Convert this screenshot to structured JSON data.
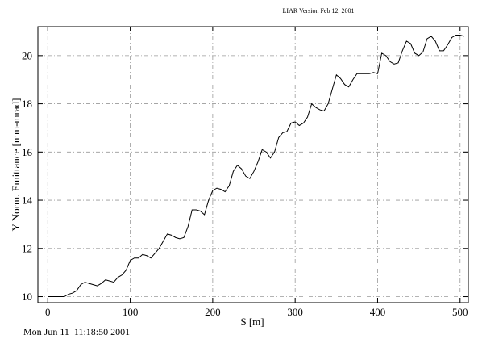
{
  "header": {
    "version_text": "LIAR Version Feb 12, 2001"
  },
  "footer": {
    "timestamp": "Mon Jun 11  11:18:50 2001"
  },
  "chart_data": {
    "type": "line",
    "title": "",
    "xlabel": "S [m]",
    "ylabel": "Y Norm. Emittance [mm-mrad]",
    "xlim": [
      -12,
      510
    ],
    "ylim": [
      9.75,
      21.2
    ],
    "xticks": [
      0,
      100,
      200,
      300,
      400,
      500
    ],
    "xtick_labels": [
      "0",
      "100",
      "200",
      "300",
      "400",
      "500"
    ],
    "yticks": [
      10,
      12,
      14,
      16,
      18,
      20
    ],
    "ytick_labels": [
      "10",
      "12",
      "14",
      "16",
      "18",
      "20"
    ],
    "grid": true,
    "legend": "none",
    "series": [
      {
        "x": [
          0,
          10,
          20,
          25,
          30,
          35,
          40,
          45,
          50,
          55,
          60,
          65,
          70,
          75,
          80,
          85,
          90,
          95,
          100,
          105,
          110,
          115,
          120,
          125,
          130,
          135,
          140,
          145,
          150,
          155,
          160,
          165,
          170,
          175,
          180,
          185,
          190,
          195,
          200,
          205,
          210,
          215,
          220,
          225,
          230,
          235,
          240,
          245,
          250,
          255,
          260,
          265,
          270,
          275,
          280,
          285,
          290,
          295,
          300,
          305,
          310,
          315,
          320,
          325,
          330,
          335,
          340,
          345,
          350,
          355,
          360,
          365,
          370,
          375,
          380,
          385,
          390,
          395,
          400,
          405,
          410,
          415,
          420,
          425,
          430,
          435,
          440,
          445,
          450,
          455,
          460,
          465,
          470,
          475,
          480,
          485,
          490,
          495,
          500,
          505
        ],
        "y": [
          10.0,
          10.0,
          10.0,
          10.1,
          10.15,
          10.25,
          10.5,
          10.6,
          10.55,
          10.5,
          10.45,
          10.55,
          10.7,
          10.65,
          10.6,
          10.8,
          10.9,
          11.1,
          11.5,
          11.6,
          11.6,
          11.75,
          11.7,
          11.6,
          11.8,
          12.0,
          12.3,
          12.6,
          12.55,
          12.45,
          12.4,
          12.45,
          12.9,
          13.6,
          13.6,
          13.55,
          13.4,
          14.0,
          14.4,
          14.5,
          14.45,
          14.35,
          14.6,
          15.2,
          15.45,
          15.3,
          15.0,
          14.9,
          15.2,
          15.6,
          16.1,
          16.0,
          15.75,
          16.0,
          16.6,
          16.8,
          16.85,
          17.2,
          17.25,
          17.1,
          17.2,
          17.45,
          18.0,
          17.85,
          17.75,
          17.7,
          18.0,
          18.6,
          19.2,
          19.05,
          18.8,
          18.7,
          19.0,
          19.25,
          19.25,
          19.25,
          19.25,
          19.3,
          19.25,
          20.1,
          20.0,
          19.75,
          19.65,
          19.7,
          20.2,
          20.6,
          20.5,
          20.1,
          20.0,
          20.15,
          20.7,
          20.8,
          20.6,
          20.2,
          20.2,
          20.45,
          20.75,
          20.85,
          20.85,
          20.8
        ]
      }
    ]
  }
}
